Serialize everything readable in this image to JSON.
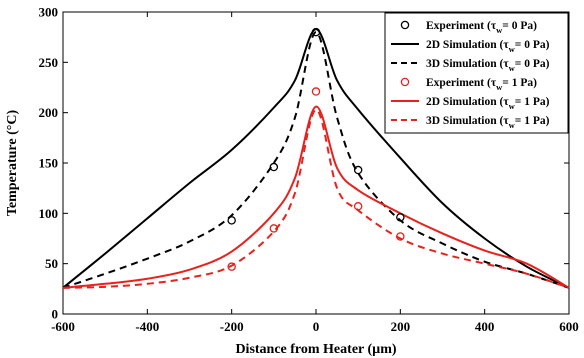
{
  "chart_data": {
    "type": "line",
    "xlabel": "Distance from Heater (µm)",
    "ylabel": "Temperature (°C)",
    "xlim": [
      -600,
      600
    ],
    "ylim": [
      0,
      300
    ],
    "xticks": [
      -600,
      -400,
      -200,
      0,
      200,
      400,
      600
    ],
    "yticks": [
      0,
      50,
      100,
      150,
      200,
      250,
      300
    ],
    "grid": false,
    "legend_position": "top-right",
    "colors": {
      "black": "#000000",
      "red": "#e8211d"
    },
    "series": [
      {
        "name": "Experiment (τw= 0 Pa)",
        "legend_main": "Experiment (τ",
        "legend_sub": "w",
        "legend_tail": "= 0 Pa)",
        "kind": "scatter",
        "color": "black",
        "points": [
          [
            -200,
            93
          ],
          [
            -100,
            146
          ],
          [
            0,
            280
          ],
          [
            100,
            143
          ],
          [
            200,
            96
          ]
        ]
      },
      {
        "name": "2D Simulation (τw= 0 Pa)",
        "legend_main": "2D Simulation (τ",
        "legend_sub": "w",
        "legend_tail": "= 0 Pa)",
        "kind": "line",
        "dash": "solid",
        "color": "black",
        "points": [
          [
            -600,
            26
          ],
          [
            -500,
            60
          ],
          [
            -400,
            95
          ],
          [
            -300,
            130
          ],
          [
            -200,
            163
          ],
          [
            -100,
            205
          ],
          [
            -50,
            232
          ],
          [
            0,
            283
          ],
          [
            50,
            232
          ],
          [
            100,
            203
          ],
          [
            200,
            155
          ],
          [
            300,
            110
          ],
          [
            400,
            75
          ],
          [
            500,
            47
          ],
          [
            600,
            26
          ]
        ]
      },
      {
        "name": "3D Simulation (τw= 0 Pa)",
        "legend_main": "3D Simulation (τ",
        "legend_sub": "w",
        "legend_tail": "= 0 Pa)",
        "kind": "line",
        "dash": "dashed",
        "color": "black",
        "points": [
          [
            -600,
            26
          ],
          [
            -500,
            40
          ],
          [
            -400,
            55
          ],
          [
            -300,
            72
          ],
          [
            -200,
            98
          ],
          [
            -100,
            150
          ],
          [
            -50,
            195
          ],
          [
            0,
            280
          ],
          [
            50,
            195
          ],
          [
            100,
            140
          ],
          [
            200,
            93
          ],
          [
            300,
            70
          ],
          [
            400,
            52
          ],
          [
            500,
            40
          ],
          [
            600,
            26
          ]
        ]
      },
      {
        "name": "Experiment (τw= 1 Pa)",
        "legend_main": "Experiment (τ",
        "legend_sub": "w",
        "legend_tail": "= 1 Pa)",
        "kind": "scatter",
        "color": "red",
        "points": [
          [
            -200,
            47
          ],
          [
            -100,
            85
          ],
          [
            0,
            221
          ],
          [
            100,
            107
          ],
          [
            200,
            77
          ]
        ]
      },
      {
        "name": "2D Simulation (τw= 1 Pa)",
        "legend_main": "2D Simulation (τ",
        "legend_sub": "w",
        "legend_tail": "= 1 Pa)",
        "kind": "line",
        "dash": "solid",
        "color": "red",
        "points": [
          [
            -600,
            26
          ],
          [
            -500,
            30
          ],
          [
            -400,
            35
          ],
          [
            -300,
            44
          ],
          [
            -200,
            62
          ],
          [
            -100,
            100
          ],
          [
            -50,
            135
          ],
          [
            0,
            206
          ],
          [
            50,
            145
          ],
          [
            100,
            123
          ],
          [
            200,
            100
          ],
          [
            300,
            80
          ],
          [
            400,
            63
          ],
          [
            500,
            50
          ],
          [
            600,
            26
          ]
        ]
      },
      {
        "name": "3D Simulation (τw= 1 Pa)",
        "legend_main": "3D Simulation (τ",
        "legend_sub": "w",
        "legend_tail": "= 1 Pa)",
        "kind": "line",
        "dash": "dashed",
        "color": "red",
        "points": [
          [
            -600,
            26
          ],
          [
            -500,
            27
          ],
          [
            -400,
            30
          ],
          [
            -300,
            36
          ],
          [
            -200,
            48
          ],
          [
            -100,
            82
          ],
          [
            -50,
            120
          ],
          [
            0,
            203
          ],
          [
            50,
            125
          ],
          [
            100,
            103
          ],
          [
            200,
            75
          ],
          [
            300,
            60
          ],
          [
            400,
            50
          ],
          [
            500,
            40
          ],
          [
            600,
            26
          ]
        ]
      }
    ]
  }
}
